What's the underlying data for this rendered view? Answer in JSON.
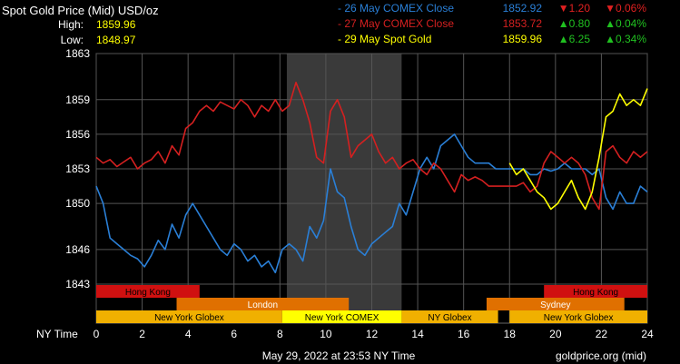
{
  "header": {
    "title": "Spot Gold Price (Mid) USD/oz",
    "high_label": "High:",
    "high_value": "1859.96",
    "low_label": "Low:",
    "low_value": "1848.97"
  },
  "legend": [
    {
      "name": "- 26 May COMEX Close",
      "price": "1852.92",
      "change": "▼1.20",
      "pct": "▼0.06%",
      "color": "#2a7fd6",
      "change_color": "#e02020"
    },
    {
      "name": "- 27 May COMEX Close",
      "price": "1853.72",
      "change": "▲0.80",
      "pct": "▲0.04%",
      "color": "#d42020",
      "change_color": "#20c020"
    },
    {
      "name": "- 29 May Spot Gold",
      "price": "1859.96",
      "change": "▲6.25",
      "pct": "▲0.34%",
      "color": "#ffff00",
      "change_color": "#20c020"
    }
  ],
  "sessions": [
    {
      "label": "Hong Kong",
      "start": 0,
      "end": 4.5,
      "row": 0,
      "color": "#d01010",
      "text_color": "#000"
    },
    {
      "label": "Hong Kong",
      "start": 19.5,
      "end": 24,
      "row": 0,
      "color": "#d01010",
      "text_color": "#000"
    },
    {
      "label": "London",
      "start": 3.5,
      "end": 11,
      "row": 1,
      "color": "#e07000",
      "text_color": "#fff"
    },
    {
      "label": "Sydney",
      "start": 17,
      "end": 23,
      "row": 1,
      "color": "#e07000",
      "text_color": "#fff"
    },
    {
      "label": "New York Globex",
      "start": 0,
      "end": 8.1,
      "row": 2,
      "color": "#f0b000",
      "text_color": "#000"
    },
    {
      "label": "New York COMEX",
      "start": 8.1,
      "end": 13.3,
      "row": 2,
      "color": "#ffff00",
      "text_color": "#000"
    },
    {
      "label": "NY Globex",
      "start": 13.3,
      "end": 17.5,
      "row": 2,
      "color": "#f0b000",
      "text_color": "#000"
    },
    {
      "label": "New York Globex",
      "start": 18,
      "end": 24,
      "row": 2,
      "color": "#f0b000",
      "text_color": "#000"
    }
  ],
  "footer": {
    "x_axis_label": "NY Time",
    "date": "May 29, 2022 at 23:53 NY Time",
    "source": "goldprice.org (mid)"
  },
  "chart_data": {
    "type": "line",
    "title": "Spot Gold Price (Mid) USD/oz",
    "xlabel": "NY Time",
    "ylabel": "",
    "x_ticks": [
      "0",
      "2",
      "4",
      "6",
      "8",
      "10",
      "12",
      "14",
      "16",
      "18",
      "20",
      "22",
      "24"
    ],
    "xlim": [
      0,
      24
    ],
    "y_ticks": [
      "1843",
      "1846",
      "1850",
      "1853",
      "1856",
      "1859",
      "1863"
    ],
    "ylim": [
      1843,
      1863
    ],
    "grid": true,
    "highlight_range": [
      8.3,
      13.3
    ],
    "series": [
      {
        "name": "26 May COMEX Close",
        "color": "#2a7fd6",
        "x": [
          0,
          0.3,
          0.6,
          0.9,
          1.2,
          1.5,
          1.8,
          2.1,
          2.4,
          2.7,
          3.0,
          3.3,
          3.6,
          3.9,
          4.2,
          4.5,
          4.8,
          5.1,
          5.4,
          5.7,
          6.0,
          6.3,
          6.6,
          6.9,
          7.2,
          7.5,
          7.8,
          8.1,
          8.4,
          8.7,
          9.0,
          9.3,
          9.6,
          9.9,
          10.2,
          10.5,
          10.8,
          11.1,
          11.4,
          11.7,
          12.0,
          12.3,
          12.6,
          12.9,
          13.2,
          13.5,
          13.8,
          14.1,
          14.4,
          14.7,
          15.0,
          15.3,
          15.6,
          15.9,
          16.2,
          16.5,
          16.8,
          17.1,
          17.4,
          17.7,
          18.0,
          18.3,
          18.6,
          18.9,
          19.2,
          19.5,
          19.8,
          20.1,
          20.4,
          20.7,
          21.0,
          21.3,
          21.6,
          21.9,
          22.2,
          22.5,
          22.8,
          23.1,
          23.4,
          23.7,
          24
        ],
        "y": [
          1851.5,
          1850.0,
          1847.0,
          1846.5,
          1846.0,
          1845.5,
          1845.2,
          1844.5,
          1845.5,
          1846.8,
          1846.0,
          1848.2,
          1847.0,
          1849.0,
          1850.0,
          1849.0,
          1848.0,
          1847.0,
          1846.0,
          1845.5,
          1846.5,
          1846.0,
          1845.0,
          1845.5,
          1844.5,
          1845.0,
          1844.0,
          1846.0,
          1846.5,
          1846.0,
          1845.0,
          1848.0,
          1847.0,
          1848.5,
          1853.0,
          1851.0,
          1850.5,
          1848.0,
          1846.0,
          1845.5,
          1846.5,
          1847.0,
          1847.5,
          1848.0,
          1850.0,
          1849.0,
          1851.0,
          1853.0,
          1854.0,
          1853.0,
          1855.0,
          1855.5,
          1856.0,
          1855.0,
          1854.0,
          1853.5,
          1853.5,
          1853.5,
          1853.0,
          1853.0,
          1853.0,
          1853.0,
          1853.0,
          1852.5,
          1852.5,
          1853.0,
          1852.8,
          1853.0,
          1853.5,
          1853.0,
          1853.0,
          1853.0,
          1852.5,
          1853.0,
          1850.5,
          1849.5,
          1851.0,
          1850.0,
          1850.0,
          1851.5,
          1851.0
        ]
      },
      {
        "name": "27 May COMEX Close",
        "color": "#d42020",
        "x": [
          0,
          0.3,
          0.6,
          0.9,
          1.2,
          1.5,
          1.8,
          2.1,
          2.4,
          2.7,
          3.0,
          3.3,
          3.6,
          3.9,
          4.2,
          4.5,
          4.8,
          5.1,
          5.4,
          5.7,
          6.0,
          6.3,
          6.6,
          6.9,
          7.2,
          7.5,
          7.8,
          8.1,
          8.4,
          8.7,
          9.0,
          9.3,
          9.6,
          9.9,
          10.2,
          10.5,
          10.8,
          11.1,
          11.4,
          11.7,
          12.0,
          12.3,
          12.6,
          12.9,
          13.2,
          13.5,
          13.8,
          14.1,
          14.4,
          14.7,
          15.0,
          15.3,
          15.6,
          15.9,
          16.2,
          16.5,
          16.8,
          17.1,
          17.4,
          17.7,
          18.0,
          18.3,
          18.6,
          18.9,
          19.2,
          19.5,
          19.8,
          20.1,
          20.4,
          20.7,
          21.0,
          21.3,
          21.6,
          21.9,
          22.2,
          22.5,
          22.8,
          23.1,
          23.4,
          23.7,
          24
        ],
        "y": [
          1854.0,
          1853.5,
          1853.8,
          1853.2,
          1853.6,
          1854.0,
          1853.0,
          1853.5,
          1853.8,
          1854.5,
          1853.5,
          1855.0,
          1854.2,
          1856.5,
          1857.0,
          1858.0,
          1858.5,
          1858.0,
          1858.8,
          1858.5,
          1858.2,
          1859.0,
          1858.5,
          1857.5,
          1858.5,
          1858.0,
          1859.0,
          1858.0,
          1858.5,
          1860.5,
          1859.0,
          1857.0,
          1854.0,
          1853.5,
          1858.0,
          1859.0,
          1857.5,
          1854.0,
          1855.0,
          1855.5,
          1856.0,
          1854.5,
          1853.5,
          1854.0,
          1853.0,
          1853.5,
          1853.8,
          1853.0,
          1852.5,
          1853.5,
          1853.0,
          1852.0,
          1851.0,
          1852.5,
          1852.0,
          1852.3,
          1852.0,
          1851.5,
          1851.5,
          1851.5,
          1851.5,
          1851.5,
          1851.8,
          1851.0,
          1851.5,
          1853.5,
          1854.5,
          1854.0,
          1853.5,
          1854.0,
          1853.5,
          1852.5,
          1850.5,
          1849.5,
          1854.5,
          1855.0,
          1854.0,
          1853.5,
          1854.5,
          1854.0,
          1854.5
        ]
      },
      {
        "name": "29 May Spot Gold",
        "color": "#ffff00",
        "x": [
          18,
          18.3,
          18.6,
          18.9,
          19.2,
          19.5,
          19.8,
          20.1,
          20.4,
          20.7,
          21.0,
          21.3,
          21.6,
          21.9,
          22.2,
          22.5,
          22.8,
          23.1,
          23.4,
          23.7,
          24
        ],
        "y": [
          1853.5,
          1852.5,
          1853.0,
          1852.0,
          1851.0,
          1850.5,
          1849.5,
          1850.0,
          1851.0,
          1852.0,
          1850.5,
          1849.5,
          1851.0,
          1854.0,
          1857.5,
          1858.0,
          1859.5,
          1858.5,
          1859.0,
          1858.5,
          1859.96
        ]
      }
    ]
  }
}
